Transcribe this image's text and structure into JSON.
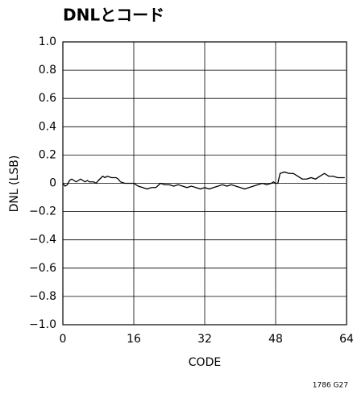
{
  "chart_data": {
    "type": "line",
    "title": "DNLとコード",
    "x_label": "CODE",
    "y_label": "DNL (LSB)",
    "annotations": [
      "1786 G27"
    ],
    "x": [
      0,
      0.5,
      1,
      1.5,
      2,
      2.5,
      3,
      3.5,
      4,
      5,
      5.5,
      6,
      7,
      7.5,
      8,
      9,
      9.5,
      10,
      11,
      12,
      12.5,
      13,
      14,
      15,
      16,
      17,
      18,
      19,
      20,
      21,
      22,
      23,
      24,
      25,
      26,
      27,
      28,
      29,
      30,
      31,
      32,
      33,
      34,
      35,
      36,
      37,
      38,
      39,
      40,
      41,
      42,
      43,
      44,
      45,
      46,
      47,
      47.5,
      48,
      48.5,
      49,
      50,
      51,
      52,
      53,
      54,
      55,
      56,
      57,
      58,
      59,
      60,
      61,
      62,
      63,
      63.6
    ],
    "series": [
      {
        "name": "DNL",
        "color": "#000000",
        "values": [
          0.0,
          -0.02,
          -0.01,
          0.02,
          0.03,
          0.02,
          0.01,
          0.02,
          0.03,
          0.01,
          0.02,
          0.01,
          0.01,
          0.0,
          0.02,
          0.05,
          0.04,
          0.05,
          0.04,
          0.04,
          0.03,
          0.01,
          0.0,
          0.0,
          0.0,
          -0.02,
          -0.03,
          -0.04,
          -0.03,
          -0.03,
          0.0,
          -0.01,
          -0.01,
          -0.02,
          -0.01,
          -0.02,
          -0.03,
          -0.02,
          -0.03,
          -0.04,
          -0.03,
          -0.04,
          -0.03,
          -0.02,
          -0.01,
          -0.02,
          -0.01,
          -0.02,
          -0.03,
          -0.04,
          -0.03,
          -0.02,
          -0.01,
          0.0,
          -0.01,
          0.0,
          0.01,
          0.0,
          0.0,
          0.07,
          0.08,
          0.07,
          0.07,
          0.05,
          0.03,
          0.03,
          0.04,
          0.03,
          0.05,
          0.07,
          0.05,
          0.05,
          0.04,
          0.04,
          0.04
        ]
      }
    ],
    "xlim": [
      0,
      64
    ],
    "xticks": [
      0,
      16,
      32,
      48,
      64
    ],
    "ylim": [
      -1,
      1
    ],
    "yticks": [
      {
        "value": -1,
        "label": "−1.0"
      },
      {
        "value": -0.8,
        "label": "−0.8"
      },
      {
        "value": -0.6,
        "label": "−0.6"
      },
      {
        "value": -0.4,
        "label": "−0.4"
      },
      {
        "value": -0.2,
        "label": "−0.2"
      },
      0,
      0.2,
      0.4,
      0.6,
      0.8,
      {
        "value": 1,
        "label": "1.0"
      }
    ],
    "grid": true
  }
}
